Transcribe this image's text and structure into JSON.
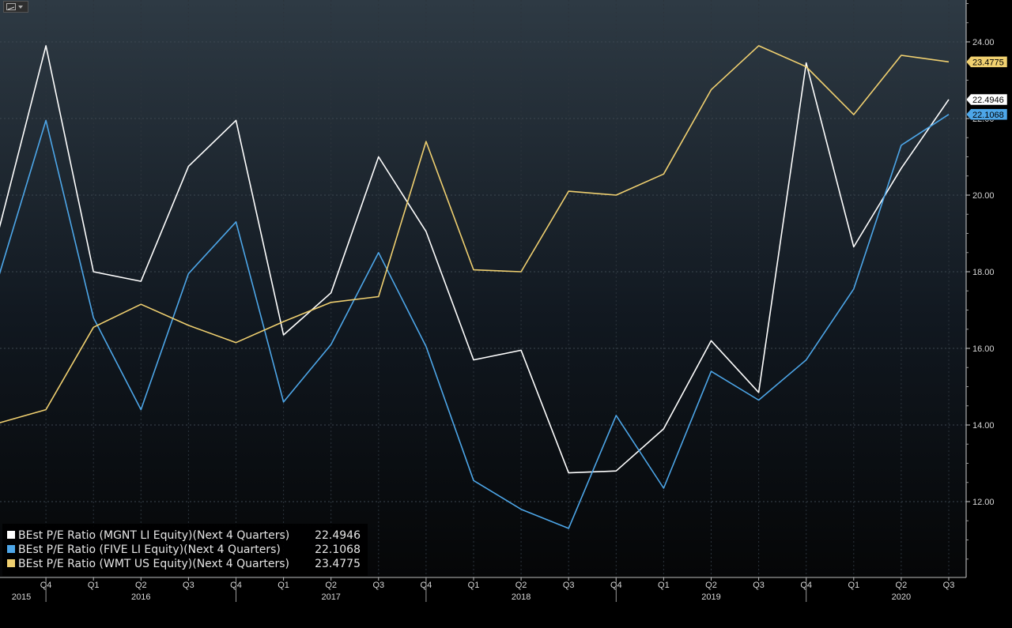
{
  "chart_data": {
    "type": "line",
    "x": [
      "2015 Q3",
      "2015 Q4",
      "2016 Q1",
      "2016 Q2",
      "2016 Q3",
      "2016 Q4",
      "2017 Q1",
      "2017 Q2",
      "2017 Q3",
      "2017 Q4",
      "2018 Q1",
      "2018 Q2",
      "2018 Q3",
      "2018 Q4",
      "2019 Q1",
      "2019 Q2",
      "2019 Q3",
      "2019 Q4",
      "2020 Q1",
      "2020 Q2",
      "2020 Q3"
    ],
    "quarter_labels": [
      "Q4",
      "Q1",
      "Q2",
      "Q3",
      "Q4",
      "Q1",
      "Q2",
      "Q3",
      "Q4",
      "Q1",
      "Q2",
      "Q3",
      "Q4",
      "Q1",
      "Q2",
      "Q3",
      "Q4",
      "Q1",
      "Q2",
      "Q3"
    ],
    "year_labels": [
      "2015",
      "2016",
      "2017",
      "2018",
      "2019",
      "2020"
    ],
    "y_ticks": [
      "12.00",
      "14.00",
      "16.00",
      "18.00",
      "20.00",
      "22.00",
      "24.00"
    ],
    "ylim": [
      10.1,
      25.1
    ],
    "grid": true,
    "legend_position": "bottom-left",
    "series": [
      {
        "name": "BEst P/E Ratio (MGNT LI Equity)(Next 4 Quarters)",
        "last": "22.4946",
        "color": "#ffffff",
        "values": [
          19.05,
          23.9,
          18.0,
          17.75,
          20.75,
          21.95,
          16.35,
          17.45,
          21.0,
          19.05,
          15.7,
          15.95,
          12.75,
          12.8,
          13.9,
          16.2,
          14.85,
          23.45,
          18.65,
          20.7,
          22.4946
        ]
      },
      {
        "name": "BEst P/E Ratio (FIVE LI Equity)(Next 4 Quarters)",
        "last": "22.1068",
        "color": "#4da6e8",
        "values": [
          17.85,
          21.95,
          16.8,
          14.4,
          17.95,
          19.3,
          14.6,
          16.1,
          18.5,
          16.05,
          12.55,
          11.8,
          11.3,
          14.25,
          12.35,
          15.4,
          14.65,
          15.7,
          17.55,
          21.3,
          22.1068
        ]
      },
      {
        "name": "BEst P/E Ratio (WMT US Equity)(Next 4 Quarters)",
        "last": "23.4775",
        "color": "#f0d070",
        "values": [
          14.05,
          14.4,
          16.55,
          17.15,
          16.6,
          16.15,
          16.7,
          17.2,
          17.35,
          21.4,
          18.05,
          18.0,
          20.1,
          20.0,
          20.55,
          22.75,
          23.9,
          23.35,
          22.1,
          23.65,
          23.4775
        ]
      }
    ]
  }
}
